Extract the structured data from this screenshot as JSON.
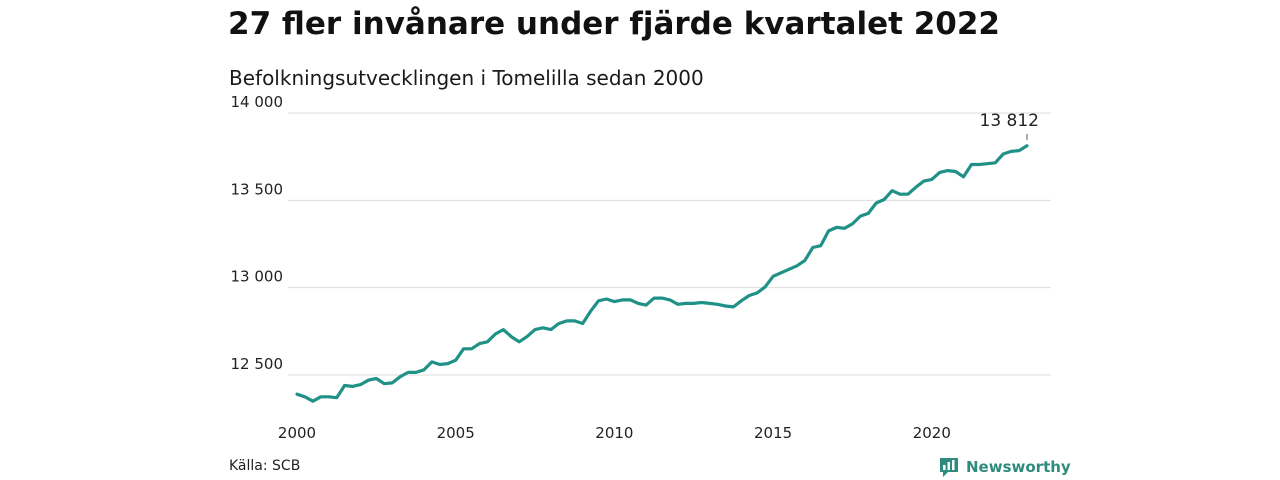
{
  "header": {
    "title": "27 fler invånare under fjärde kvartalet 2022",
    "subtitle": "Befolkningsutvecklingen i Tomelilla sedan 2000"
  },
  "footer": {
    "source": "Källa: SCB",
    "brand": "Newsworthy",
    "brand_icon": "bar-chart-logo-icon"
  },
  "colors": {
    "line": "#1f9186",
    "grid": "#dddddd",
    "brand": "#2e8b7d"
  },
  "chart_data": {
    "type": "line",
    "title": "27 fler invånare under fjärde kvartalet 2022",
    "subtitle": "Befolkningsutvecklingen i Tomelilla sedan 2000",
    "xlabel": "",
    "ylabel": "",
    "xlim": [
      2000,
      2023
    ],
    "ylim": [
      12350,
      14000
    ],
    "yticks": [
      12500,
      13000,
      13500,
      14000
    ],
    "ytick_labels": [
      "12 500",
      "13 000",
      "13 500",
      "14 000"
    ],
    "xticks": [
      2000,
      2005,
      2010,
      2015,
      2020
    ],
    "xtick_labels": [
      "2000",
      "2005",
      "2010",
      "2015",
      "2020"
    ],
    "grid": "horizontal",
    "annotation": {
      "text": "13 812",
      "x": 2023.0,
      "y": 13812
    },
    "x": [
      2000.0,
      2000.25,
      2000.5,
      2000.75,
      2001.0,
      2001.25,
      2001.5,
      2001.75,
      2002.0,
      2002.25,
      2002.5,
      2002.75,
      2003.0,
      2003.25,
      2003.5,
      2003.75,
      2004.0,
      2004.25,
      2004.5,
      2004.75,
      2005.0,
      2005.25,
      2005.5,
      2005.75,
      2006.0,
      2006.25,
      2006.5,
      2006.75,
      2007.0,
      2007.25,
      2007.5,
      2007.75,
      2008.0,
      2008.25,
      2008.5,
      2008.75,
      2009.0,
      2009.25,
      2009.5,
      2009.75,
      2010.0,
      2010.25,
      2010.5,
      2010.75,
      2011.0,
      2011.25,
      2011.5,
      2011.75,
      2012.0,
      2012.25,
      2012.5,
      2012.75,
      2013.0,
      2013.25,
      2013.5,
      2013.75,
      2014.0,
      2014.25,
      2014.5,
      2014.75,
      2015.0,
      2015.25,
      2015.5,
      2015.75,
      2016.0,
      2016.25,
      2016.5,
      2016.75,
      2017.0,
      2017.25,
      2017.5,
      2017.75,
      2018.0,
      2018.25,
      2018.5,
      2018.75,
      2019.0,
      2019.25,
      2019.5,
      2019.75,
      2020.0,
      2020.25,
      2020.5,
      2020.75,
      2021.0,
      2021.25,
      2021.5,
      2021.75,
      2022.0,
      2022.25,
      2022.5,
      2022.75,
      2023.0
    ],
    "series": [
      {
        "values": [
          12390,
          12375,
          12350,
          12375,
          12375,
          12370,
          12440,
          12435,
          12445,
          12470,
          12480,
          12450,
          12455,
          12490,
          12515,
          12515,
          12530,
          12575,
          12560,
          12565,
          12585,
          12650,
          12650,
          12680,
          12690,
          12735,
          12760,
          12720,
          12690,
          12720,
          12760,
          12770,
          12760,
          12795,
          12810,
          12810,
          12795,
          12865,
          12925,
          12935,
          12920,
          12930,
          12930,
          12910,
          12900,
          12940,
          12940,
          12930,
          12905,
          12910,
          12910,
          12915,
          12910,
          12905,
          12895,
          12890,
          12925,
          12955,
          12970,
          13005,
          13065,
          13085,
          13105,
          13125,
          13155,
          13230,
          13240,
          13325,
          13345,
          13340,
          13365,
          13410,
          13425,
          13485,
          13505,
          13555,
          13535,
          13535,
          13575,
          13610,
          13620,
          13660,
          13670,
          13665,
          13635,
          13705,
          13705,
          13710,
          13715,
          13765,
          13780,
          13785,
          13812
        ]
      }
    ]
  }
}
